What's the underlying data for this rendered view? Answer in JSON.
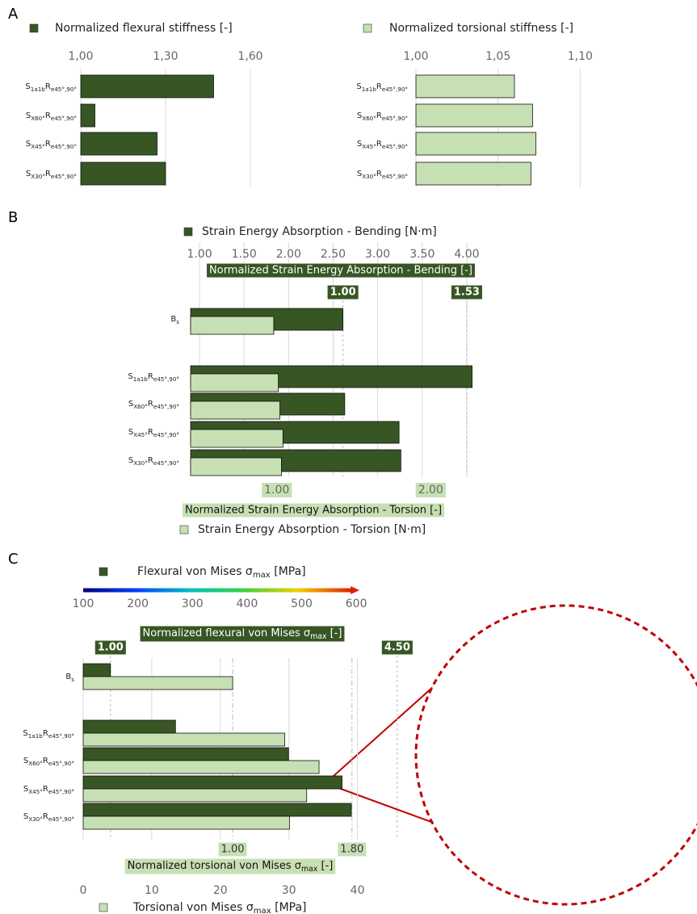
{
  "panel_labels": [
    "A",
    "B",
    "C"
  ],
  "chart_data": [
    {
      "type": "bar",
      "orientation": "horizontal",
      "categories": [
        "S1a1bRe45°,90°",
        "SX60°Re45°,90°",
        "SX45°Re45°,90°",
        "SX30°Re45°,90°"
      ],
      "series": [
        {
          "name": "Normalized flexural stiffness [-]",
          "color": "#375623",
          "values": [
            1.47,
            1.05,
            1.27,
            1.3
          ]
        }
      ],
      "xlim": [
        1,
        1.7
      ],
      "xticks": [
        {
          "value": 1,
          "label": "1,00"
        },
        {
          "value": 1.3,
          "label": "1,30"
        },
        {
          "value": 1.6,
          "label": "1,60"
        }
      ],
      "grid": true
    },
    {
      "type": "bar",
      "orientation": "horizontal",
      "categories": [
        "S1a1bRe45°,90°",
        "SX60°Re45°,90°",
        "SX45°Re45°,90°",
        "SX30°Re45°,90°"
      ],
      "series": [
        {
          "name": "Normalized torsional stiffness [-]",
          "color": "#c6e0b4",
          "values": [
            1.06,
            1.071,
            1.073,
            1.07
          ]
        }
      ],
      "xlim": [
        1,
        1.12
      ],
      "xticks": [
        {
          "value": 1,
          "label": "1,00"
        },
        {
          "value": 1.05,
          "label": "1,05"
        },
        {
          "value": 1.1,
          "label": "1,10"
        }
      ],
      "grid": true
    },
    {
      "type": "bar",
      "orientation": "horizontal",
      "categories": [
        "Bs",
        "S1a1bRe45°,90°",
        "SX60°Re45°,90°",
        "SX45°Re45°,90°",
        "SX30°Re45°,90°"
      ],
      "series": [
        {
          "name": "Strain Energy Absorption - Bending [N·m]",
          "color": "#375623",
          "values": [
            2.61,
            4.06,
            2.63,
            3.24,
            3.26
          ]
        },
        {
          "name": "Strain Energy Absorption - Torsion [N·m]",
          "color": "#c6e0b4",
          "axis": "x2",
          "values": [
            0.98,
            1.01,
            1.02,
            1.04,
            1.03
          ]
        }
      ],
      "xlabel": "Normalized Strain Energy Absorption - Bending [-]",
      "x2label": "Normalized Strain Energy Absorption - Torsion [-]",
      "xlim": [
        0.9,
        4.2
      ],
      "xticks": [
        {
          "value": 1,
          "label": "1.00"
        },
        {
          "value": 1.5,
          "label": "1.50"
        },
        {
          "value": 2,
          "label": "2.00"
        },
        {
          "value": 2.5,
          "label": "2.50"
        },
        {
          "value": 3,
          "label": "3.00"
        },
        {
          "value": 3.5,
          "label": "3.50"
        },
        {
          "value": 4,
          "label": "4.00"
        }
      ],
      "x2lim": [
        0.44,
        2.35
      ],
      "x2ticks": [
        {
          "value": 1,
          "label": "1.00"
        },
        {
          "value": 2,
          "label": "2.00"
        }
      ],
      "markers": [
        {
          "value": 2.61,
          "label": "1.00"
        },
        {
          "value": 4.0,
          "label": "1.53"
        }
      ],
      "grid": true
    },
    {
      "type": "bar",
      "orientation": "horizontal",
      "categories": [
        "Bs",
        "S1a1bRe45°,90°",
        "SX60°Re45°,90°",
        "SX45°Re45°,90°",
        "SX30°Re45°,90°"
      ],
      "series": [
        {
          "name": "Flexural von Mises σmax [MPa]",
          "color": "#375623",
          "values": [
            150,
            269,
            476,
            574,
            591
          ]
        },
        {
          "name": "Torsional von Mises σmax [MPa]",
          "color": "#c6e0b4",
          "axis": "x2",
          "values": [
            21.8,
            29.4,
            34.4,
            32.6,
            30.1
          ]
        }
      ],
      "xlabel": "Normalized flexural von Mises σmax [-]",
      "x2label": "Normalized torsional von Mises σmax [-]",
      "colorbar": true,
      "xlim": [
        100,
        690
      ],
      "xticks": [
        100,
        200,
        300,
        400,
        500,
        600
      ],
      "x2lim": [
        0,
        47
      ],
      "x2ticks": [
        0,
        10,
        20,
        30,
        40
      ],
      "markers": [
        {
          "value": 150,
          "label": "1.00"
        },
        {
          "value": 675,
          "label": "4.50"
        }
      ],
      "x2markers": [
        {
          "value": 21.8,
          "label": "1.00"
        },
        {
          "value": 39.2,
          "label": "1.80"
        }
      ],
      "grid": true
    }
  ]
}
